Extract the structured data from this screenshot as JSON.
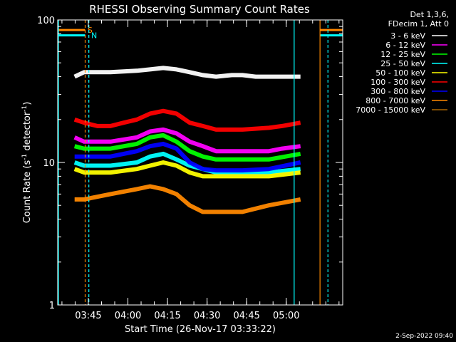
{
  "chart_data": {
    "type": "line",
    "title": "RHESSI Observing Summary Count Rates",
    "xlabel": "Start Time (26-Nov-17 03:33:22)",
    "ylabel": "Count Rate (s",
    "ylabel_sup": "-1",
    "ylabel_tail": " detector",
    "ylabel_sup2": "-1",
    "ylabel_close": ")",
    "y_scale": "log",
    "ylim": [
      1,
      100
    ],
    "y_ticks": [
      {
        "v": 1,
        "label": "1"
      },
      {
        "v": 10,
        "label": "10"
      },
      {
        "v": 100,
        "label": "100"
      }
    ],
    "x_range_minutes": [
      0,
      108
    ],
    "x_ticks": [
      {
        "t": 11.6,
        "label": "03:45"
      },
      {
        "t": 26.6,
        "label": "04:00"
      },
      {
        "t": 41.6,
        "label": "04:15"
      },
      {
        "t": 56.6,
        "label": "04:30"
      },
      {
        "t": 71.6,
        "label": "04:45"
      },
      {
        "t": 86.6,
        "label": "05:00"
      }
    ],
    "legend_header": [
      "Det 1,3,6,",
      "FDecim 1, Att 0"
    ],
    "legend_position": "right",
    "flag_labels": {
      "S": "S",
      "N": "N"
    },
    "series": [
      {
        "name": "3 - 6 keV",
        "color": "#ffffff",
        "values": [
          [
            6.4,
            40
          ],
          [
            10,
            43
          ],
          [
            20,
            43
          ],
          [
            30,
            44
          ],
          [
            35,
            45
          ],
          [
            40,
            46
          ],
          [
            45,
            45
          ],
          [
            50,
            43
          ],
          [
            55,
            41
          ],
          [
            60,
            40
          ],
          [
            66,
            41
          ],
          [
            70,
            41
          ],
          [
            75,
            40
          ],
          [
            80,
            40
          ],
          [
            85,
            40
          ],
          [
            92,
            40
          ]
        ]
      },
      {
        "name": "6 - 12 keV",
        "color": "#ff00ff",
        "values": [
          [
            6.4,
            15
          ],
          [
            10,
            14
          ],
          [
            20,
            14
          ],
          [
            30,
            15
          ],
          [
            35,
            16.5
          ],
          [
            40,
            17
          ],
          [
            45,
            16
          ],
          [
            50,
            14
          ],
          [
            55,
            13
          ],
          [
            60,
            12
          ],
          [
            70,
            12
          ],
          [
            80,
            12
          ],
          [
            85,
            12.5
          ],
          [
            92,
            13
          ]
        ]
      },
      {
        "name": "12 - 25 keV",
        "color": "#00ff00",
        "values": [
          [
            6.4,
            13
          ],
          [
            10,
            12.5
          ],
          [
            20,
            12.5
          ],
          [
            30,
            13.5
          ],
          [
            35,
            15
          ],
          [
            40,
            15.5
          ],
          [
            45,
            14
          ],
          [
            50,
            12
          ],
          [
            55,
            11
          ],
          [
            60,
            10.5
          ],
          [
            70,
            10.5
          ],
          [
            80,
            10.5
          ],
          [
            92,
            11.5
          ]
        ]
      },
      {
        "name": "25 - 50 keV",
        "color": "#00ffff",
        "values": [
          [
            6.4,
            10
          ],
          [
            10,
            9.5
          ],
          [
            20,
            9.5
          ],
          [
            30,
            10
          ],
          [
            35,
            11
          ],
          [
            40,
            11.5
          ],
          [
            45,
            10.5
          ],
          [
            50,
            9.5
          ],
          [
            55,
            9
          ],
          [
            60,
            8.5
          ],
          [
            70,
            8.5
          ],
          [
            80,
            8.5
          ],
          [
            92,
            9
          ]
        ]
      },
      {
        "name": "50 - 100 keV",
        "color": "#ffff00",
        "values": [
          [
            6.4,
            9
          ],
          [
            10,
            8.5
          ],
          [
            20,
            8.5
          ],
          [
            30,
            9
          ],
          [
            35,
            9.5
          ],
          [
            40,
            10
          ],
          [
            45,
            9.5
          ],
          [
            50,
            8.5
          ],
          [
            55,
            8
          ],
          [
            60,
            8
          ],
          [
            70,
            8
          ],
          [
            80,
            8
          ],
          [
            92,
            8.5
          ]
        ]
      },
      {
        "name": "100 - 300 keV",
        "color": "#ff0000",
        "values": [
          [
            6.4,
            20
          ],
          [
            10,
            19
          ],
          [
            15,
            18
          ],
          [
            20,
            18
          ],
          [
            25,
            19
          ],
          [
            30,
            20
          ],
          [
            35,
            22
          ],
          [
            40,
            23
          ],
          [
            45,
            22
          ],
          [
            50,
            19
          ],
          [
            55,
            18
          ],
          [
            60,
            17
          ],
          [
            70,
            17
          ],
          [
            80,
            17.5
          ],
          [
            85,
            18
          ],
          [
            92,
            19
          ]
        ]
      },
      {
        "name": "300 - 800 keV",
        "color": "#0000ff",
        "values": [
          [
            6.4,
            11
          ],
          [
            10,
            11
          ],
          [
            20,
            11
          ],
          [
            30,
            12
          ],
          [
            35,
            13
          ],
          [
            40,
            13.5
          ],
          [
            45,
            12.5
          ],
          [
            50,
            10
          ],
          [
            55,
            9
          ],
          [
            60,
            8.8
          ],
          [
            70,
            8.8
          ],
          [
            80,
            9
          ],
          [
            92,
            10
          ]
        ]
      },
      {
        "name": "800 - 7000 keV",
        "color": "#ff8800",
        "values": [
          [
            6.4,
            5.5
          ],
          [
            10,
            5.5
          ],
          [
            20,
            6
          ],
          [
            30,
            6.5
          ],
          [
            35,
            6.8
          ],
          [
            40,
            6.5
          ],
          [
            45,
            6
          ],
          [
            50,
            5
          ],
          [
            55,
            4.5
          ],
          [
            60,
            4.5
          ],
          [
            70,
            4.5
          ],
          [
            80,
            5
          ],
          [
            92,
            5.5
          ]
        ]
      },
      {
        "name": "7000 - 15000 keV",
        "color": "#aa6600",
        "values": []
      }
    ],
    "saa_flag_levels": {
      "S": 85,
      "N": 78
    },
    "attenuator_lines_minutes": [
      10.4,
      11.8,
      89.6,
      99.4,
      102.4
    ]
  },
  "footer_timestamp": "2-Sep-2022 09:40"
}
